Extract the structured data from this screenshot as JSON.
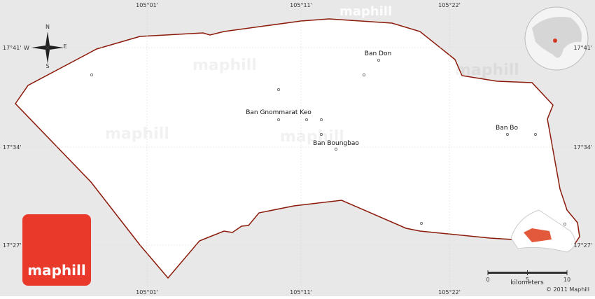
{
  "coordinates": {
    "longitudes": [
      "105°01'",
      "105°11'",
      "105°22'"
    ],
    "latitudes": [
      "17°41'",
      "17°34'",
      "17°27'"
    ]
  },
  "places": [
    "Ban Don",
    "Ban Gnommarat Keo",
    "Ban Boungbao",
    "Ban Bo"
  ],
  "compass": {
    "north": "N",
    "south": "S",
    "east": "E",
    "west": "W"
  },
  "logo": "maphill",
  "watermark": "maphill",
  "scale": {
    "title": "kilometers",
    "ticks": [
      0,
      5,
      10
    ]
  },
  "copyright": "© 2011 Maphill"
}
